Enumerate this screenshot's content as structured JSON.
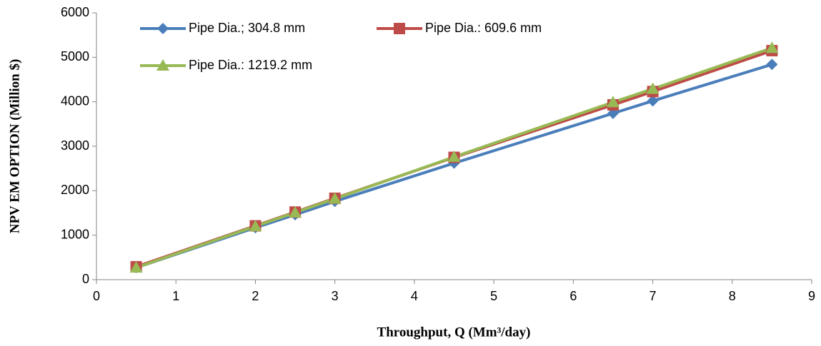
{
  "chart_data": {
    "type": "line",
    "x_label": "Throughput, Q (Mm³/day)",
    "y_label": "NPV EM OPTION (Million $)",
    "x": [
      0.5,
      2,
      2.5,
      3,
      4.5,
      6.5,
      7,
      8.5
    ],
    "series": [
      {
        "name": "Pipe Dia.; 304.8 mm",
        "color": "#4a7ebb",
        "marker": "diamond",
        "values": [
          270,
          1170,
          1460,
          1760,
          2620,
          3740,
          4020,
          4840
        ]
      },
      {
        "name": "Pipe Dia.: 609.6 mm",
        "color": "#be4b48",
        "marker": "square",
        "values": [
          290,
          1210,
          1520,
          1830,
          2750,
          3930,
          4230,
          5150
        ]
      },
      {
        "name": "Pipe Dia.: 1219.2 mm",
        "color": "#98b954",
        "marker": "triangle",
        "values": [
          270,
          1200,
          1510,
          1820,
          2760,
          3990,
          4290,
          5210
        ]
      }
    ],
    "xlim": [
      0,
      9
    ],
    "xticks": [
      0,
      1,
      2,
      3,
      4,
      5,
      6,
      7,
      8,
      9
    ],
    "ylim": [
      0,
      6000
    ],
    "yticks": [
      0,
      1000,
      2000,
      3000,
      4000,
      5000,
      6000
    ],
    "grid": false
  }
}
